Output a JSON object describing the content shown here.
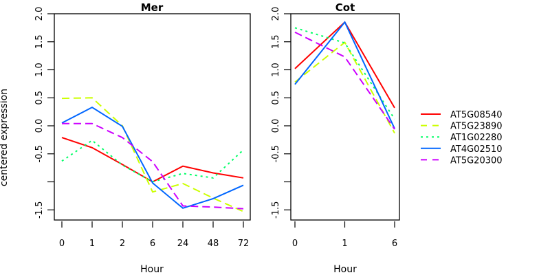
{
  "chart_data": [
    {
      "type": "line",
      "title": "Mer",
      "xlabel": "Hour",
      "ylabel": "centered expression",
      "categories": [
        "0",
        "1",
        "2",
        "6",
        "24",
        "48",
        "72"
      ],
      "ylim": [
        -1.7,
        2.0
      ],
      "yticks": [
        2.0,
        1.5,
        1.0,
        0.5,
        0.0,
        -0.5,
        -1.0,
        -1.5
      ],
      "ytick_labels": [
        "2.0",
        "1.5",
        "1.0",
        "0.5",
        "0.0",
        "-0.5",
        "",
        "-1.5"
      ],
      "grid": false,
      "series": [
        {
          "name": "AT5G08540",
          "values": [
            -0.21,
            -0.39,
            -0.69,
            -1.0,
            -0.72,
            -0.84,
            -0.93
          ]
        },
        {
          "name": "AT5G23890",
          "values": [
            0.49,
            0.5,
            0.0,
            -1.18,
            -1.03,
            -1.29,
            -1.53
          ]
        },
        {
          "name": "AT1G02280",
          "values": [
            -0.63,
            -0.26,
            -0.7,
            -1.0,
            -0.85,
            -0.93,
            -0.43
          ]
        },
        {
          "name": "AT4G02510",
          "values": [
            0.05,
            0.33,
            -0.01,
            -1.02,
            -1.47,
            -1.3,
            -1.06
          ]
        },
        {
          "name": "AT5G20300",
          "values": [
            0.04,
            0.04,
            -0.21,
            -0.64,
            -1.43,
            -1.45,
            -1.48
          ]
        }
      ]
    },
    {
      "type": "line",
      "title": "Cot",
      "xlabel": "Hour",
      "ylabel": "",
      "categories": [
        "0",
        "1",
        "6"
      ],
      "ylim": [
        -1.7,
        2.0
      ],
      "yticks": [
        2.0,
        1.5,
        1.0,
        0.5,
        0.0,
        -0.5,
        -1.0,
        -1.5
      ],
      "ytick_labels": [
        "2.0",
        "1.5",
        "1.0",
        "0.5",
        "0.0",
        "-0.5",
        "",
        "-1.5"
      ],
      "grid": false,
      "series": [
        {
          "name": "AT5G08540",
          "values": [
            1.02,
            1.85,
            0.32
          ]
        },
        {
          "name": "AT5G23890",
          "values": [
            0.78,
            1.49,
            -0.13
          ]
        },
        {
          "name": "AT1G02280",
          "values": [
            1.75,
            1.48,
            0.12
          ]
        },
        {
          "name": "AT4G02510",
          "values": [
            0.74,
            1.85,
            -0.05
          ]
        },
        {
          "name": "AT5G20300",
          "values": [
            1.67,
            1.23,
            -0.06
          ]
        }
      ]
    }
  ],
  "legend": {
    "placement": "right",
    "items": [
      {
        "label": "AT5G08540",
        "color": "#FF0000",
        "style": "solid"
      },
      {
        "label": "AT5G23890",
        "color": "#CCFF00",
        "style": "dashed"
      },
      {
        "label": "AT1G02280",
        "color": "#00FF66",
        "style": "dotted"
      },
      {
        "label": "AT4G02510",
        "color": "#0066FF",
        "style": "solid"
      },
      {
        "label": "AT5G20300",
        "color": "#CC00FF",
        "style": "dashed"
      }
    ]
  }
}
